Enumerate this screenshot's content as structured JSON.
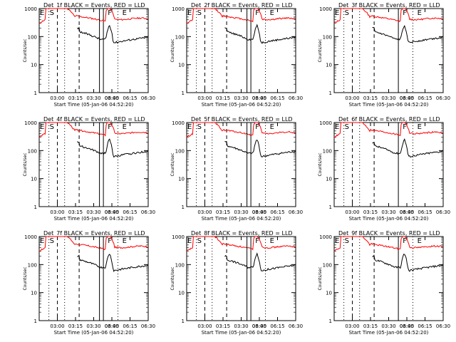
{
  "chart_data": [
    {
      "type": "line",
      "title": "Det_1f BLACK = Events, RED = LLD"
    },
    {
      "type": "line",
      "title": "Det_2f BLACK = Events, RED = LLD"
    },
    {
      "type": "line",
      "title": "Det_3f BLACK = Events, RED = LLD"
    },
    {
      "type": "line",
      "title": "Det_4f BLACK = Events, RED = LLD"
    },
    {
      "type": "line",
      "title": "Det_5f BLACK = Events, RED = LLD"
    },
    {
      "type": "line",
      "title": "Det_6f BLACK = Events, RED = LLD"
    },
    {
      "type": "line",
      "title": "Det_7f BLACK = Events, RED = LLD"
    },
    {
      "type": "line",
      "title": "Det_8f BLACK = Events, RED = LLD"
    },
    {
      "type": "line",
      "title": "Det_9f BLACK = Events, RED = LLD"
    }
  ],
  "shared": {
    "xlabel": "Start Time (05-Jan-06 04:52:20)",
    "ylabel": "Counts/sec",
    "y_scale": "log",
    "ylim": [
      1,
      1000
    ],
    "xlim": [
      "02:45",
      "06:30"
    ],
    "x_ticks": [
      "03:00",
      "03:15",
      "03:30",
      "03:45",
      "06:00",
      "06:15",
      "06:30"
    ],
    "y_ticks": [
      "1",
      "10",
      "100",
      "1000"
    ],
    "series_colors": {
      "events": "#000000",
      "lld": "#ff0000"
    },
    "markers": [
      {
        "label": "E",
        "x": "02:45",
        "style": "dotted"
      },
      {
        "label": "S",
        "x": "02:53",
        "style": "dotted"
      },
      {
        "label": "",
        "x": "03:00",
        "style": "dashed"
      },
      {
        "label": "",
        "x": "03:06",
        "style": "dotted"
      },
      {
        "label": "",
        "x": "03:18",
        "style": "dashed"
      },
      {
        "label": "",
        "x": "03:38",
        "style": "solid"
      },
      {
        "label": "F",
        "x": "03:41",
        "style": "text"
      },
      {
        "label": "",
        "x": "03:48",
        "style": "solid"
      },
      {
        "label": "",
        "x": "06:05",
        "style": "dotted"
      },
      {
        "label": "E",
        "x": "06:08",
        "style": "text"
      },
      {
        "label": "",
        "x": "06:30",
        "style": "dotted"
      }
    ]
  }
}
